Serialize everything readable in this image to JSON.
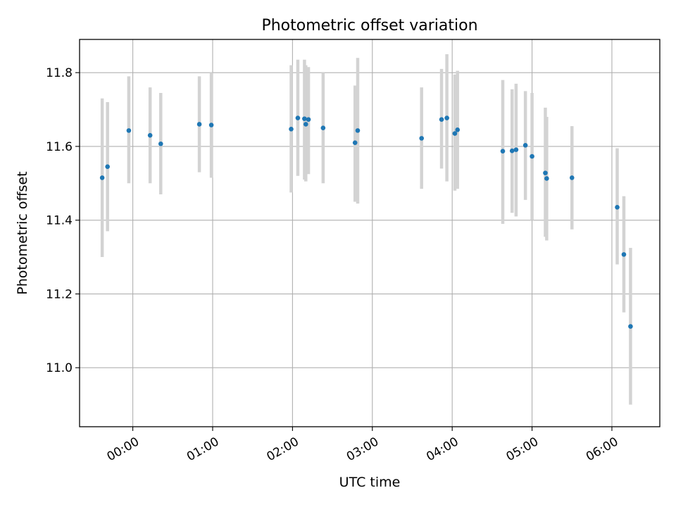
{
  "chart_data": {
    "type": "scatter",
    "title": "Photometric offset variation",
    "xlabel": "UTC time",
    "ylabel": "Photometric offset",
    "grid": true,
    "xlim": [
      "23:20",
      "06:36"
    ],
    "ylim": [
      10.84,
      11.89
    ],
    "x_ticks": [
      "00:00",
      "01:00",
      "02:00",
      "03:00",
      "04:00",
      "05:00",
      "06:00"
    ],
    "y_ticks": [
      "11.0",
      "11.2",
      "11.4",
      "11.6",
      "11.8"
    ],
    "colors": {
      "marker": "#1f77b4",
      "errorbar": "#d3d3d3",
      "grid": "#b0b0b0"
    },
    "points": [
      {
        "x": "23:37",
        "y": 11.515,
        "ylow": 11.3,
        "yhigh": 11.73
      },
      {
        "x": "23:41",
        "y": 11.545,
        "ylow": 11.37,
        "yhigh": 11.72
      },
      {
        "x": "23:57",
        "y": 11.643,
        "ylow": 11.5,
        "yhigh": 11.79
      },
      {
        "x": "00:13",
        "y": 11.63,
        "ylow": 11.5,
        "yhigh": 11.76
      },
      {
        "x": "00:21",
        "y": 11.607,
        "ylow": 11.47,
        "yhigh": 11.745
      },
      {
        "x": "00:50",
        "y": 11.66,
        "ylow": 11.53,
        "yhigh": 11.79
      },
      {
        "x": "00:59",
        "y": 11.658,
        "ylow": 11.515,
        "yhigh": 11.8
      },
      {
        "x": "01:59",
        "y": 11.647,
        "ylow": 11.475,
        "yhigh": 11.82
      },
      {
        "x": "02:04",
        "y": 11.677,
        "ylow": 11.52,
        "yhigh": 11.835
      },
      {
        "x": "02:09",
        "y": 11.675,
        "ylow": 11.51,
        "yhigh": 11.835
      },
      {
        "x": "02:10",
        "y": 11.66,
        "ylow": 11.505,
        "yhigh": 11.82
      },
      {
        "x": "02:12",
        "y": 11.673,
        "ylow": 11.525,
        "yhigh": 11.815
      },
      {
        "x": "02:23",
        "y": 11.65,
        "ylow": 11.5,
        "yhigh": 11.8
      },
      {
        "x": "02:47",
        "y": 11.61,
        "ylow": 11.45,
        "yhigh": 11.765
      },
      {
        "x": "02:49",
        "y": 11.643,
        "ylow": 11.445,
        "yhigh": 11.84
      },
      {
        "x": "03:37",
        "y": 11.622,
        "ylow": 11.485,
        "yhigh": 11.76
      },
      {
        "x": "03:52",
        "y": 11.673,
        "ylow": 11.54,
        "yhigh": 11.81
      },
      {
        "x": "03:56",
        "y": 11.677,
        "ylow": 11.505,
        "yhigh": 11.85
      },
      {
        "x": "04:02",
        "y": 11.635,
        "ylow": 11.48,
        "yhigh": 11.795
      },
      {
        "x": "04:04",
        "y": 11.645,
        "ylow": 11.485,
        "yhigh": 11.805
      },
      {
        "x": "04:38",
        "y": 11.587,
        "ylow": 11.39,
        "yhigh": 11.78
      },
      {
        "x": "04:45",
        "y": 11.588,
        "ylow": 11.42,
        "yhigh": 11.755
      },
      {
        "x": "04:48",
        "y": 11.591,
        "ylow": 11.41,
        "yhigh": 11.77
      },
      {
        "x": "04:55",
        "y": 11.603,
        "ylow": 11.455,
        "yhigh": 11.75
      },
      {
        "x": "05:00",
        "y": 11.573,
        "ylow": 11.4,
        "yhigh": 11.745
      },
      {
        "x": "05:10",
        "y": 11.528,
        "ylow": 11.355,
        "yhigh": 11.705
      },
      {
        "x": "05:11",
        "y": 11.513,
        "ylow": 11.345,
        "yhigh": 11.68
      },
      {
        "x": "05:30",
        "y": 11.515,
        "ylow": 11.375,
        "yhigh": 11.655
      },
      {
        "x": "06:04",
        "y": 11.435,
        "ylow": 11.28,
        "yhigh": 11.595
      },
      {
        "x": "06:09",
        "y": 11.307,
        "ylow": 11.15,
        "yhigh": 11.465
      },
      {
        "x": "06:14",
        "y": 11.112,
        "ylow": 10.9,
        "yhigh": 11.325
      }
    ]
  }
}
